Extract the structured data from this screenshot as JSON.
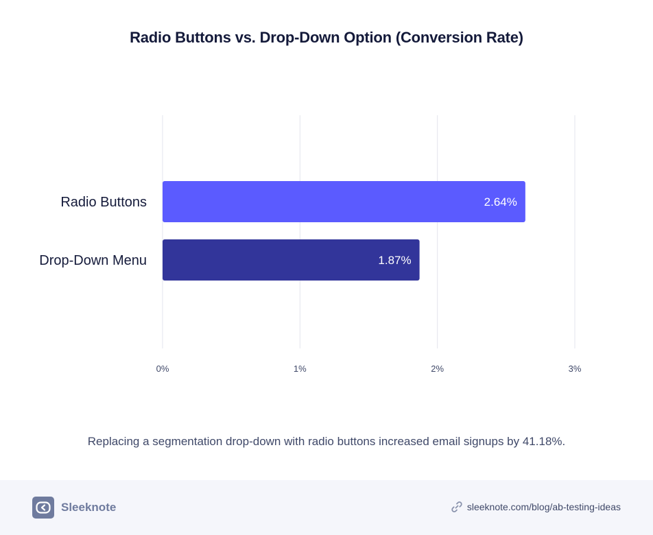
{
  "chart_data": {
    "type": "bar",
    "orientation": "horizontal",
    "title": "Radio Buttons vs. Drop-Down Option (Conversion Rate)",
    "categories": [
      "Radio Buttons",
      "Drop-Down Menu"
    ],
    "values": [
      2.64,
      1.87
    ],
    "value_labels": [
      "2.64%",
      "1.87%"
    ],
    "bar_colors": [
      "#5b5bff",
      "#32359a"
    ],
    "xlim": [
      0,
      3
    ],
    "x_ticks": [
      0,
      1,
      2,
      3
    ],
    "x_tick_labels": [
      "0%",
      "1%",
      "2%",
      "3%"
    ],
    "grid": "vertical",
    "xlabel": "",
    "ylabel": ""
  },
  "caption": "Replacing a segmentation drop-down with radio buttons increased email signups by 41.18%.",
  "footer": {
    "brand_name": "Sleeknote",
    "brand_icon": "sleeknote-logo-icon",
    "source_icon": "link-icon",
    "source_url": "sleeknote.com/blog/ab-testing-ideas"
  },
  "colors": {
    "title": "#141a3a",
    "text": "#3f4868",
    "grid": "#e3e5ec",
    "footer_bg": "#f5f6fb",
    "brand": "#6f7b9e"
  }
}
